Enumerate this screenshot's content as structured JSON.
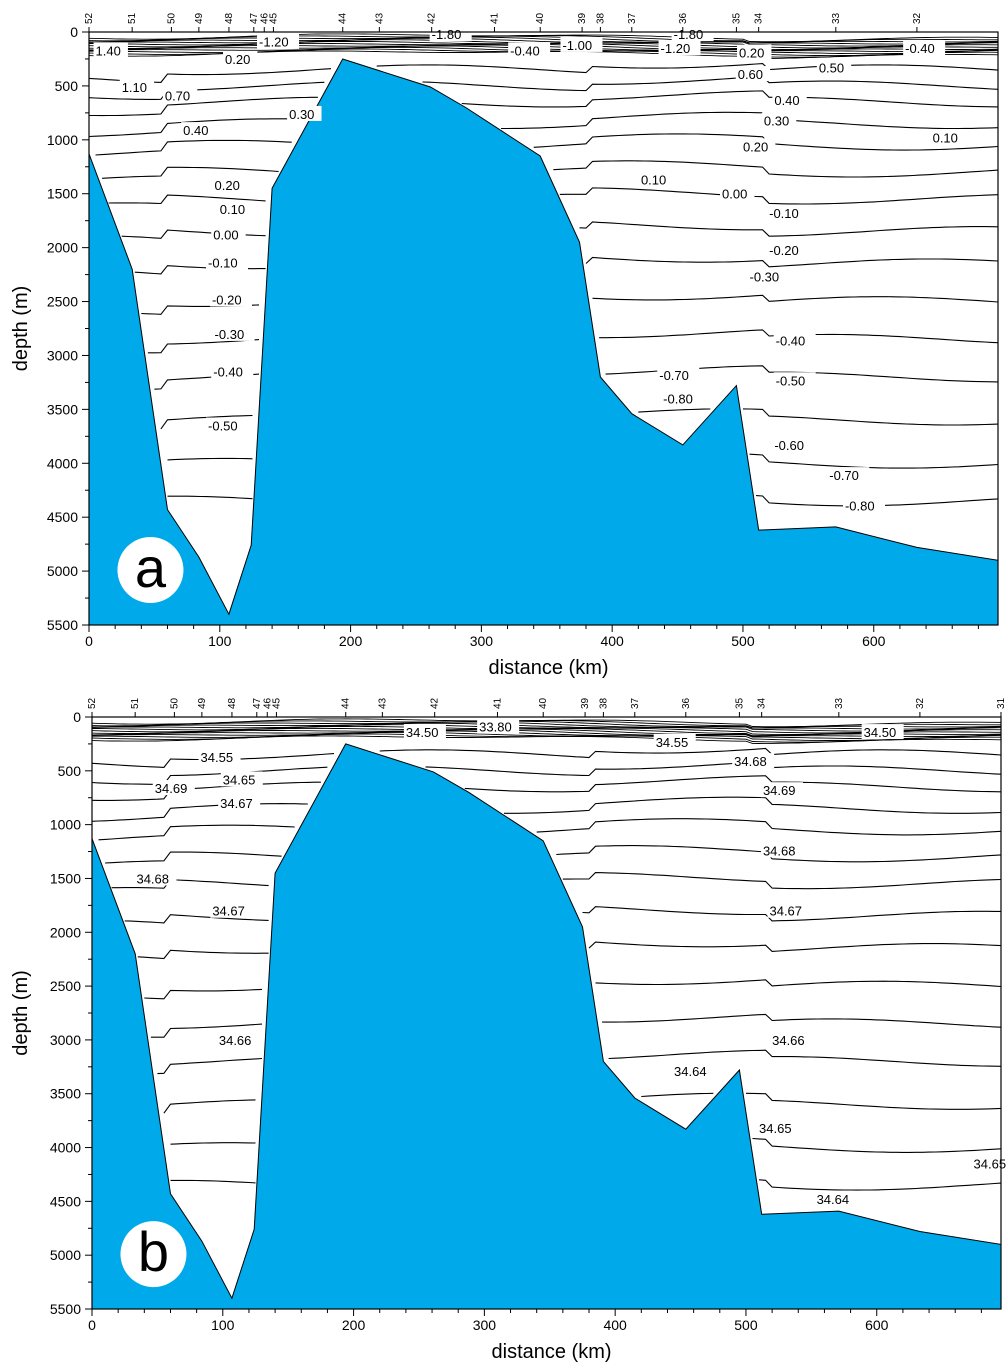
{
  "colors": {
    "bathymetry": "#00a9e9",
    "contour": "#000000",
    "background": "#ffffff"
  },
  "chart_data": [
    {
      "type": "contour",
      "panel_label": "a",
      "xlabel": "distance (km)",
      "ylabel": "depth (m)",
      "xlim": [
        0,
        695
      ],
      "ylim": [
        5500,
        0
      ],
      "x_ticks": [
        0,
        100,
        200,
        300,
        400,
        500,
        600
      ],
      "y_ticks": [
        0,
        500,
        1000,
        1500,
        2000,
        2500,
        3000,
        3500,
        4000,
        4500,
        5000,
        5500
      ],
      "stations": [
        {
          "name": "52",
          "x": 0
        },
        {
          "name": "51",
          "x": 33
        },
        {
          "name": "50",
          "x": 63
        },
        {
          "name": "49",
          "x": 84
        },
        {
          "name": "48",
          "x": 107
        },
        {
          "name": "47",
          "x": 126
        },
        {
          "name": "46",
          "x": 134
        },
        {
          "name": "45",
          "x": 141
        },
        {
          "name": "44",
          "x": 194
        },
        {
          "name": "43",
          "x": 222
        },
        {
          "name": "42",
          "x": 262
        },
        {
          "name": "41",
          "x": 310
        },
        {
          "name": "40",
          "x": 345
        },
        {
          "name": "39",
          "x": 377
        },
        {
          "name": "38",
          "x": 391
        },
        {
          "name": "37",
          "x": 415
        },
        {
          "name": "36",
          "x": 454
        },
        {
          "name": "35",
          "x": 495
        },
        {
          "name": "34",
          "x": 512
        },
        {
          "name": "33",
          "x": 571
        },
        {
          "name": "32",
          "x": 633
        }
      ],
      "bathymetry": [
        [
          0,
          1130
        ],
        [
          33,
          2200
        ],
        [
          60,
          4430
        ],
        [
          84,
          4870
        ],
        [
          107,
          5400
        ],
        [
          124,
          4760
        ],
        [
          140,
          1450
        ],
        [
          194,
          250
        ],
        [
          261,
          510
        ],
        [
          288,
          700
        ],
        [
          345,
          1150
        ],
        [
          375,
          1950
        ],
        [
          391,
          3200
        ],
        [
          415,
          3540
        ],
        [
          454,
          3830
        ],
        [
          495,
          3280
        ],
        [
          512,
          4620
        ],
        [
          571,
          4590
        ],
        [
          633,
          4780
        ],
        [
          695,
          4900
        ]
      ],
      "contours": [
        {
          "label": "-1.80",
          "lx": 262,
          "ly": 20
        },
        {
          "label": "-1.80",
          "lx": 447,
          "ly": 20
        },
        {
          "label": "-1.20",
          "lx": 130,
          "ly": 90
        },
        {
          "label": "-1.20",
          "lx": 437,
          "ly": 150
        },
        {
          "label": "1.40",
          "lx": 5,
          "ly": 170
        },
        {
          "label": "-0.40",
          "lx": 322,
          "ly": 170
        },
        {
          "label": "-1.00",
          "lx": 362,
          "ly": 120
        },
        {
          "label": "0.20",
          "lx": 497,
          "ly": 190
        },
        {
          "label": "-0.40",
          "lx": 624,
          "ly": 150
        },
        {
          "label": "1.10",
          "lx": 25,
          "ly": 510
        },
        {
          "label": "0.70",
          "lx": 58,
          "ly": 590
        },
        {
          "label": "0.20",
          "lx": 104,
          "ly": 250
        },
        {
          "label": "0.60",
          "lx": 496,
          "ly": 390
        },
        {
          "label": "0.50",
          "lx": 558,
          "ly": 330
        },
        {
          "label": "0.40",
          "lx": 72,
          "ly": 910
        },
        {
          "label": "0.30",
          "lx": 153,
          "ly": 760
        },
        {
          "label": "0.40",
          "lx": 524,
          "ly": 630
        },
        {
          "label": "0.30",
          "lx": 516,
          "ly": 820
        },
        {
          "label": "0.10",
          "lx": 645,
          "ly": 980
        },
        {
          "label": "0.20",
          "lx": 500,
          "ly": 1060
        },
        {
          "label": "0.10",
          "lx": 422,
          "ly": 1370
        },
        {
          "label": "0.20",
          "lx": 96,
          "ly": 1420
        },
        {
          "label": "0.10",
          "lx": 100,
          "ly": 1640
        },
        {
          "label": "0.00",
          "lx": 95,
          "ly": 1880
        },
        {
          "label": "0.00",
          "lx": 484,
          "ly": 1500
        },
        {
          "label": "-0.10",
          "lx": 520,
          "ly": 1680
        },
        {
          "label": "-0.10",
          "lx": 91,
          "ly": 2140
        },
        {
          "label": "-0.20",
          "lx": 520,
          "ly": 2020
        },
        {
          "label": "-0.20",
          "lx": 94,
          "ly": 2480
        },
        {
          "label": "-0.30",
          "lx": 505,
          "ly": 2270
        },
        {
          "label": "-0.30",
          "lx": 96,
          "ly": 2800
        },
        {
          "label": "-0.40",
          "lx": 525,
          "ly": 2860
        },
        {
          "label": "-0.40",
          "lx": 95,
          "ly": 3150
        },
        {
          "label": "-0.70",
          "lx": 436,
          "ly": 3180
        },
        {
          "label": "-0.50",
          "lx": 525,
          "ly": 3230
        },
        {
          "label": "-0.80",
          "lx": 439,
          "ly": 3400
        },
        {
          "label": "-0.50",
          "lx": 91,
          "ly": 3650
        },
        {
          "label": "-0.60",
          "lx": 524,
          "ly": 3830
        },
        {
          "label": "-0.70",
          "lx": 566,
          "ly": 4110
        },
        {
          "label": "-0.80",
          "lx": 578,
          "ly": 4390
        }
      ]
    },
    {
      "type": "contour",
      "panel_label": "b",
      "xlabel": "distance (km)",
      "ylabel": "depth (m)",
      "xlim": [
        0,
        695
      ],
      "ylim": [
        5500,
        0
      ],
      "x_ticks": [
        0,
        100,
        200,
        300,
        400,
        500,
        600
      ],
      "y_ticks": [
        0,
        500,
        1000,
        1500,
        2000,
        2500,
        3000,
        3500,
        4000,
        4500,
        5000,
        5500
      ],
      "stations": [
        {
          "name": "52",
          "x": 0
        },
        {
          "name": "51",
          "x": 33
        },
        {
          "name": "50",
          "x": 63
        },
        {
          "name": "49",
          "x": 84
        },
        {
          "name": "48",
          "x": 107
        },
        {
          "name": "47",
          "x": 126
        },
        {
          "name": "46",
          "x": 134
        },
        {
          "name": "45",
          "x": 141
        },
        {
          "name": "44",
          "x": 194
        },
        {
          "name": "43",
          "x": 222
        },
        {
          "name": "42",
          "x": 262
        },
        {
          "name": "41",
          "x": 310
        },
        {
          "name": "40",
          "x": 345
        },
        {
          "name": "39",
          "x": 377
        },
        {
          "name": "38",
          "x": 391
        },
        {
          "name": "37",
          "x": 415
        },
        {
          "name": "36",
          "x": 454
        },
        {
          "name": "35",
          "x": 495
        },
        {
          "name": "34",
          "x": 512
        },
        {
          "name": "33",
          "x": 571
        },
        {
          "name": "32",
          "x": 633
        },
        {
          "name": "31",
          "x": 695
        }
      ],
      "bathymetry": [
        [
          0,
          1130
        ],
        [
          33,
          2200
        ],
        [
          60,
          4430
        ],
        [
          84,
          4870
        ],
        [
          107,
          5400
        ],
        [
          124,
          4760
        ],
        [
          140,
          1450
        ],
        [
          194,
          250
        ],
        [
          261,
          510
        ],
        [
          288,
          700
        ],
        [
          345,
          1150
        ],
        [
          375,
          1950
        ],
        [
          391,
          3200
        ],
        [
          415,
          3540
        ],
        [
          454,
          3830
        ],
        [
          495,
          3280
        ],
        [
          512,
          4620
        ],
        [
          571,
          4590
        ],
        [
          633,
          4780
        ],
        [
          695,
          4900
        ]
      ],
      "contours": [
        {
          "label": "33.80",
          "lx": 296,
          "ly": 90
        },
        {
          "label": "34.50",
          "lx": 240,
          "ly": 140
        },
        {
          "label": "34.50",
          "lx": 590,
          "ly": 140
        },
        {
          "label": "34.55",
          "lx": 83,
          "ly": 370
        },
        {
          "label": "34.55",
          "lx": 431,
          "ly": 230
        },
        {
          "label": "34.68",
          "lx": 491,
          "ly": 410
        },
        {
          "label": "34.65",
          "lx": 100,
          "ly": 580
        },
        {
          "label": "34.69",
          "lx": 48,
          "ly": 660
        },
        {
          "label": "34.67",
          "lx": 98,
          "ly": 800
        },
        {
          "label": "34.69",
          "lx": 513,
          "ly": 680
        },
        {
          "label": "34.68",
          "lx": 513,
          "ly": 1240
        },
        {
          "label": "34.68",
          "lx": 34,
          "ly": 1500
        },
        {
          "label": "34.67",
          "lx": 92,
          "ly": 1800
        },
        {
          "label": "34.67",
          "lx": 518,
          "ly": 1800
        },
        {
          "label": "34.66",
          "lx": 97,
          "ly": 3000
        },
        {
          "label": "34.66",
          "lx": 520,
          "ly": 3000
        },
        {
          "label": "34.64",
          "lx": 445,
          "ly": 3290
        },
        {
          "label": "34.65",
          "lx": 510,
          "ly": 3820
        },
        {
          "label": "34.65",
          "lx": 674,
          "ly": 4150
        },
        {
          "label": "34.64",
          "lx": 554,
          "ly": 4480
        }
      ]
    }
  ]
}
